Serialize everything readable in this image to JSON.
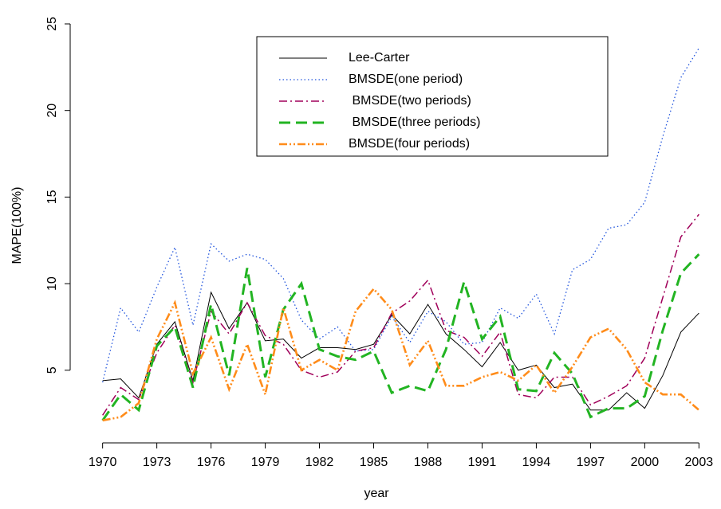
{
  "chart_data": {
    "type": "line",
    "x_label": "year",
    "y_label": "MAPE(100%)",
    "x": [
      1970,
      1971,
      1972,
      1973,
      1974,
      1975,
      1976,
      1977,
      1978,
      1979,
      1980,
      1981,
      1982,
      1983,
      1984,
      1985,
      1986,
      1987,
      1988,
      1989,
      1990,
      1991,
      1992,
      1993,
      1994,
      1995,
      1996,
      1997,
      1998,
      1999,
      2000,
      2001,
      2002,
      2003
    ],
    "xlim": [
      1969,
      2004
    ],
    "xticks": [
      1970,
      1973,
      1976,
      1979,
      1982,
      1985,
      1988,
      1991,
      1994,
      1997,
      2000,
      2003
    ],
    "ylim": [
      1.08,
      25.92
    ],
    "yticks": [
      5,
      10,
      15,
      20,
      25
    ],
    "series": [
      {
        "name": "Lee-Carter",
        "color": "#000000",
        "values": [
          4.4,
          4.5,
          3.4,
          6.5,
          7.8,
          4.4,
          9.5,
          7.4,
          8.9,
          6.7,
          6.8,
          5.7,
          6.3,
          6.3,
          6.2,
          6.5,
          8.2,
          7.1,
          8.8,
          7.1,
          6.2,
          5.2,
          6.6,
          5.0,
          5.3,
          4.0,
          4.2,
          2.7,
          2.7,
          3.7,
          2.8,
          4.7,
          7.2,
          8.3
        ]
      },
      {
        "name": "BMSDE(one period)",
        "color": "#2255dd",
        "values": [
          4.3,
          8.6,
          7.2,
          9.8,
          12.1,
          7.6,
          12.3,
          11.3,
          11.7,
          11.4,
          10.3,
          7.9,
          6.8,
          7.5,
          6.1,
          6.2,
          8.1,
          6.6,
          8.4,
          7.8,
          6.5,
          6.6,
          8.6,
          8.0,
          9.4,
          7.1,
          10.8,
          11.4,
          13.2,
          13.4,
          14.7,
          18.5,
          21.9,
          23.6
        ]
      },
      {
        "name": " BMSDE(two periods)",
        "color": "#a0005a",
        "values": [
          2.4,
          4.0,
          3.3,
          6.0,
          7.6,
          4.3,
          8.4,
          7.1,
          8.9,
          7.0,
          6.5,
          5.0,
          4.6,
          4.9,
          6.1,
          6.3,
          8.3,
          9.0,
          10.2,
          7.3,
          6.9,
          5.8,
          7.2,
          3.6,
          3.4,
          4.6,
          4.6,
          3.0,
          3.5,
          4.1,
          5.7,
          9.2,
          12.7,
          14.0
        ]
      },
      {
        "name": " BMSDE(three periods)",
        "color": "#22b422",
        "values": [
          2.1,
          3.6,
          2.7,
          6.4,
          7.5,
          4.0,
          8.8,
          4.7,
          10.9,
          4.6,
          8.5,
          10.0,
          6.2,
          5.8,
          5.6,
          6.1,
          3.7,
          4.1,
          3.8,
          6.2,
          10.1,
          6.8,
          8.1,
          3.9,
          3.8,
          6.0,
          4.8,
          2.3,
          2.8,
          2.8,
          3.5,
          7.3,
          10.6,
          11.7
        ]
      },
      {
        "name": "BMSDE(four periods)",
        "color": "#ff8c1a",
        "values": [
          2.1,
          2.3,
          3.1,
          6.8,
          8.9,
          4.8,
          6.9,
          3.9,
          6.5,
          3.6,
          8.6,
          5.0,
          5.6,
          5.0,
          8.4,
          9.7,
          8.5,
          5.3,
          6.7,
          4.1,
          4.1,
          4.6,
          4.9,
          4.4,
          5.3,
          3.7,
          5.2,
          6.9,
          7.4,
          6.2,
          4.3,
          3.6,
          3.6,
          2.7
        ]
      }
    ]
  }
}
